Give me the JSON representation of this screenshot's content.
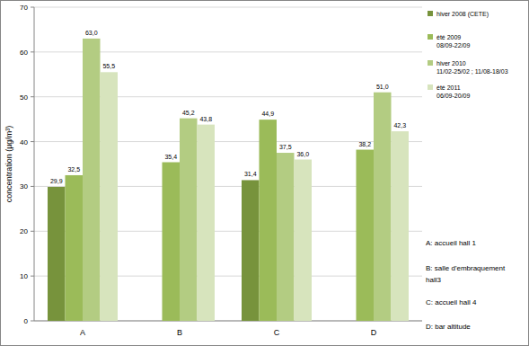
{
  "chart_data": {
    "type": "bar",
    "y_label": "concentration (µg/m³)",
    "categories": [
      "A",
      "B",
      "C",
      "D"
    ],
    "series": [
      {
        "name": "hiver 2008 (CETE)",
        "color": "#77933c",
        "values": [
          29.9,
          null,
          31.4,
          null
        ],
        "value_labels": [
          "29,9",
          null,
          "31,4",
          null
        ]
      },
      {
        "name": "été 2009\n08/09-22/09",
        "color": "#9bbb59",
        "values": [
          32.5,
          35.4,
          44.9,
          38.2
        ],
        "value_labels": [
          "32,5",
          "35,4",
          "44,9",
          "38,2"
        ]
      },
      {
        "name": "hiver 2010\n11/02-25/02 ; 11/08-18/03",
        "color": "#b3cc82",
        "values": [
          63.0,
          45.2,
          37.5,
          51.0
        ],
        "value_labels": [
          "63,0",
          "45,2",
          "37,5",
          "51,0"
        ]
      },
      {
        "name": "été 2011\n06/09-20/09",
        "color": "#d7e4bd",
        "values": [
          55.5,
          43.8,
          36.0,
          42.3
        ],
        "value_labels": [
          "55,5",
          "43,8",
          "36,0",
          "42,3"
        ]
      }
    ],
    "ylim": [
      0,
      70
    ],
    "yticks": [
      0,
      10,
      20,
      30,
      40,
      50,
      60,
      70
    ],
    "grid": true,
    "legend": "right",
    "data_labels": true,
    "annotations": [
      "A: accueil hall 1",
      "B: salle d'embraquement\nhall3",
      "C: accueil hall 4",
      "D: bar altitude"
    ]
  }
}
